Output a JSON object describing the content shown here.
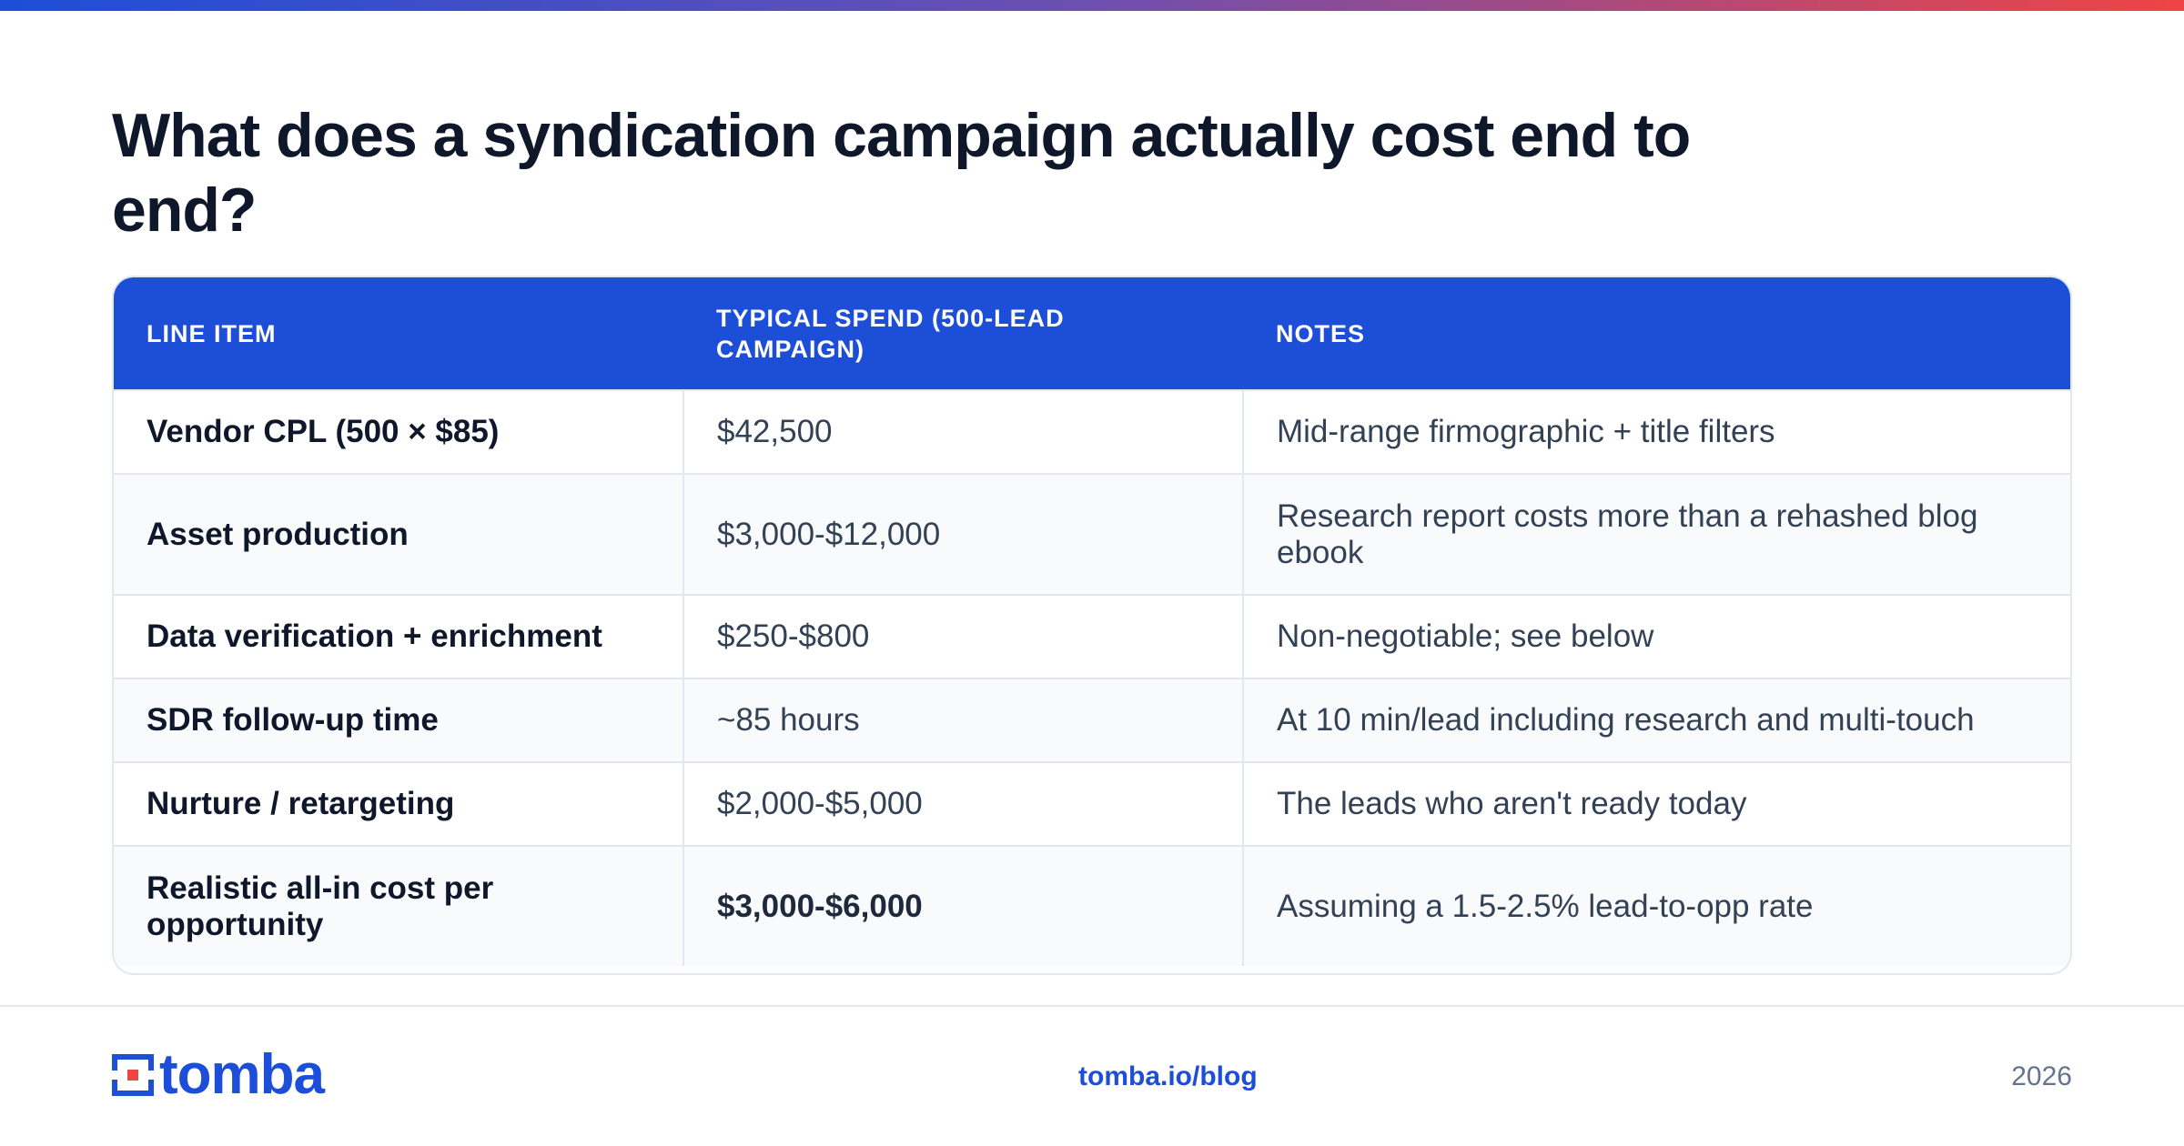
{
  "title": "What does a syndication campaign actually cost end to end?",
  "table": {
    "headers": [
      "LINE ITEM",
      "TYPICAL SPEND (500-LEAD CAMPAIGN)",
      "NOTES"
    ],
    "rows": [
      {
        "item": "Vendor CPL (500 × $85)",
        "spend": "$42,500",
        "notes": "Mid-range firmographic + title filters"
      },
      {
        "item": "Asset production",
        "spend": "$3,000-$12,000",
        "notes": "Research report costs more than a rehashed blog ebook"
      },
      {
        "item": "Data verification + enrichment",
        "spend": "$250-$800",
        "notes": "Non-negotiable; see below"
      },
      {
        "item": "SDR follow-up time",
        "spend": "~85 hours",
        "notes": "At 10 min/lead including research and multi-touch"
      },
      {
        "item": "Nurture / retargeting",
        "spend": "$2,000-$5,000",
        "notes": "The leads who aren't ready today"
      },
      {
        "item": "Realistic all-in cost per opportunity",
        "spend": "$3,000-$6,000",
        "notes": "Assuming a 1.5-2.5% lead-to-opp rate"
      }
    ]
  },
  "footer": {
    "logo_text": "tomba",
    "url": "tomba.io/blog",
    "year": "2026"
  },
  "colors": {
    "accent": "#1d4ed8",
    "logo_red": "#ef4444",
    "gradient_start": "#1d4ed8",
    "gradient_end": "#ef4444"
  }
}
